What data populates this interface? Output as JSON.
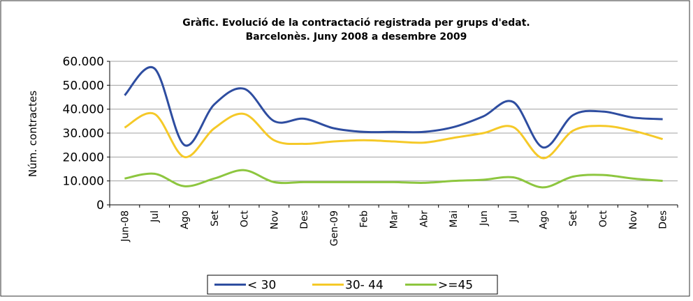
{
  "chart_data": {
    "type": "line",
    "title": "Gràfic. Evolució de la contractació registrada per grups d'edat.",
    "subtitle": "Barcelonès. Juny 2008 a desembre 2009",
    "y_label": "Núm. contractes",
    "categories": [
      "Jun-08",
      "Jul",
      "Ago",
      "Set",
      "Oct",
      "Nov",
      "Des",
      "Gen-09",
      "Feb",
      "Mar",
      "Abr",
      "Mai",
      "Jun",
      "Jul",
      "Ago",
      "Set",
      "Oct",
      "Nov",
      "Des"
    ],
    "series": [
      {
        "name": "< 30",
        "color": "#2e4da0",
        "values": [
          45800,
          57000,
          25000,
          42000,
          48500,
          35000,
          36000,
          32000,
          30500,
          30500,
          30500,
          32500,
          37000,
          43000,
          24000,
          37500,
          39000,
          36500,
          35800
        ]
      },
      {
        "name": "30- 44",
        "color": "#f5c928",
        "values": [
          32300,
          38000,
          20000,
          32000,
          38000,
          27000,
          25500,
          26500,
          27000,
          26500,
          26000,
          28000,
          30000,
          32500,
          19500,
          31000,
          33000,
          31000,
          27500
        ]
      },
      {
        "name": ">=45",
        "color": "#8dc63f",
        "values": [
          11000,
          13000,
          7800,
          11000,
          14500,
          9500,
          9500,
          9500,
          9500,
          9500,
          9200,
          10000,
          10500,
          11500,
          7300,
          11800,
          12500,
          11000,
          10000
        ]
      }
    ],
    "ylim": [
      0,
      60000
    ],
    "yticks": [
      0,
      {
        "value": 10000,
        "label": "10.000"
      },
      {
        "value": 20000,
        "label": "20.000"
      },
      {
        "value": 30000,
        "label": "30.000"
      },
      {
        "value": 40000,
        "label": "40.000"
      },
      {
        "value": 50000,
        "label": "50.000"
      },
      {
        "value": 60000,
        "label": "60.000"
      }
    ],
    "grid": true,
    "legend": "bottom"
  }
}
